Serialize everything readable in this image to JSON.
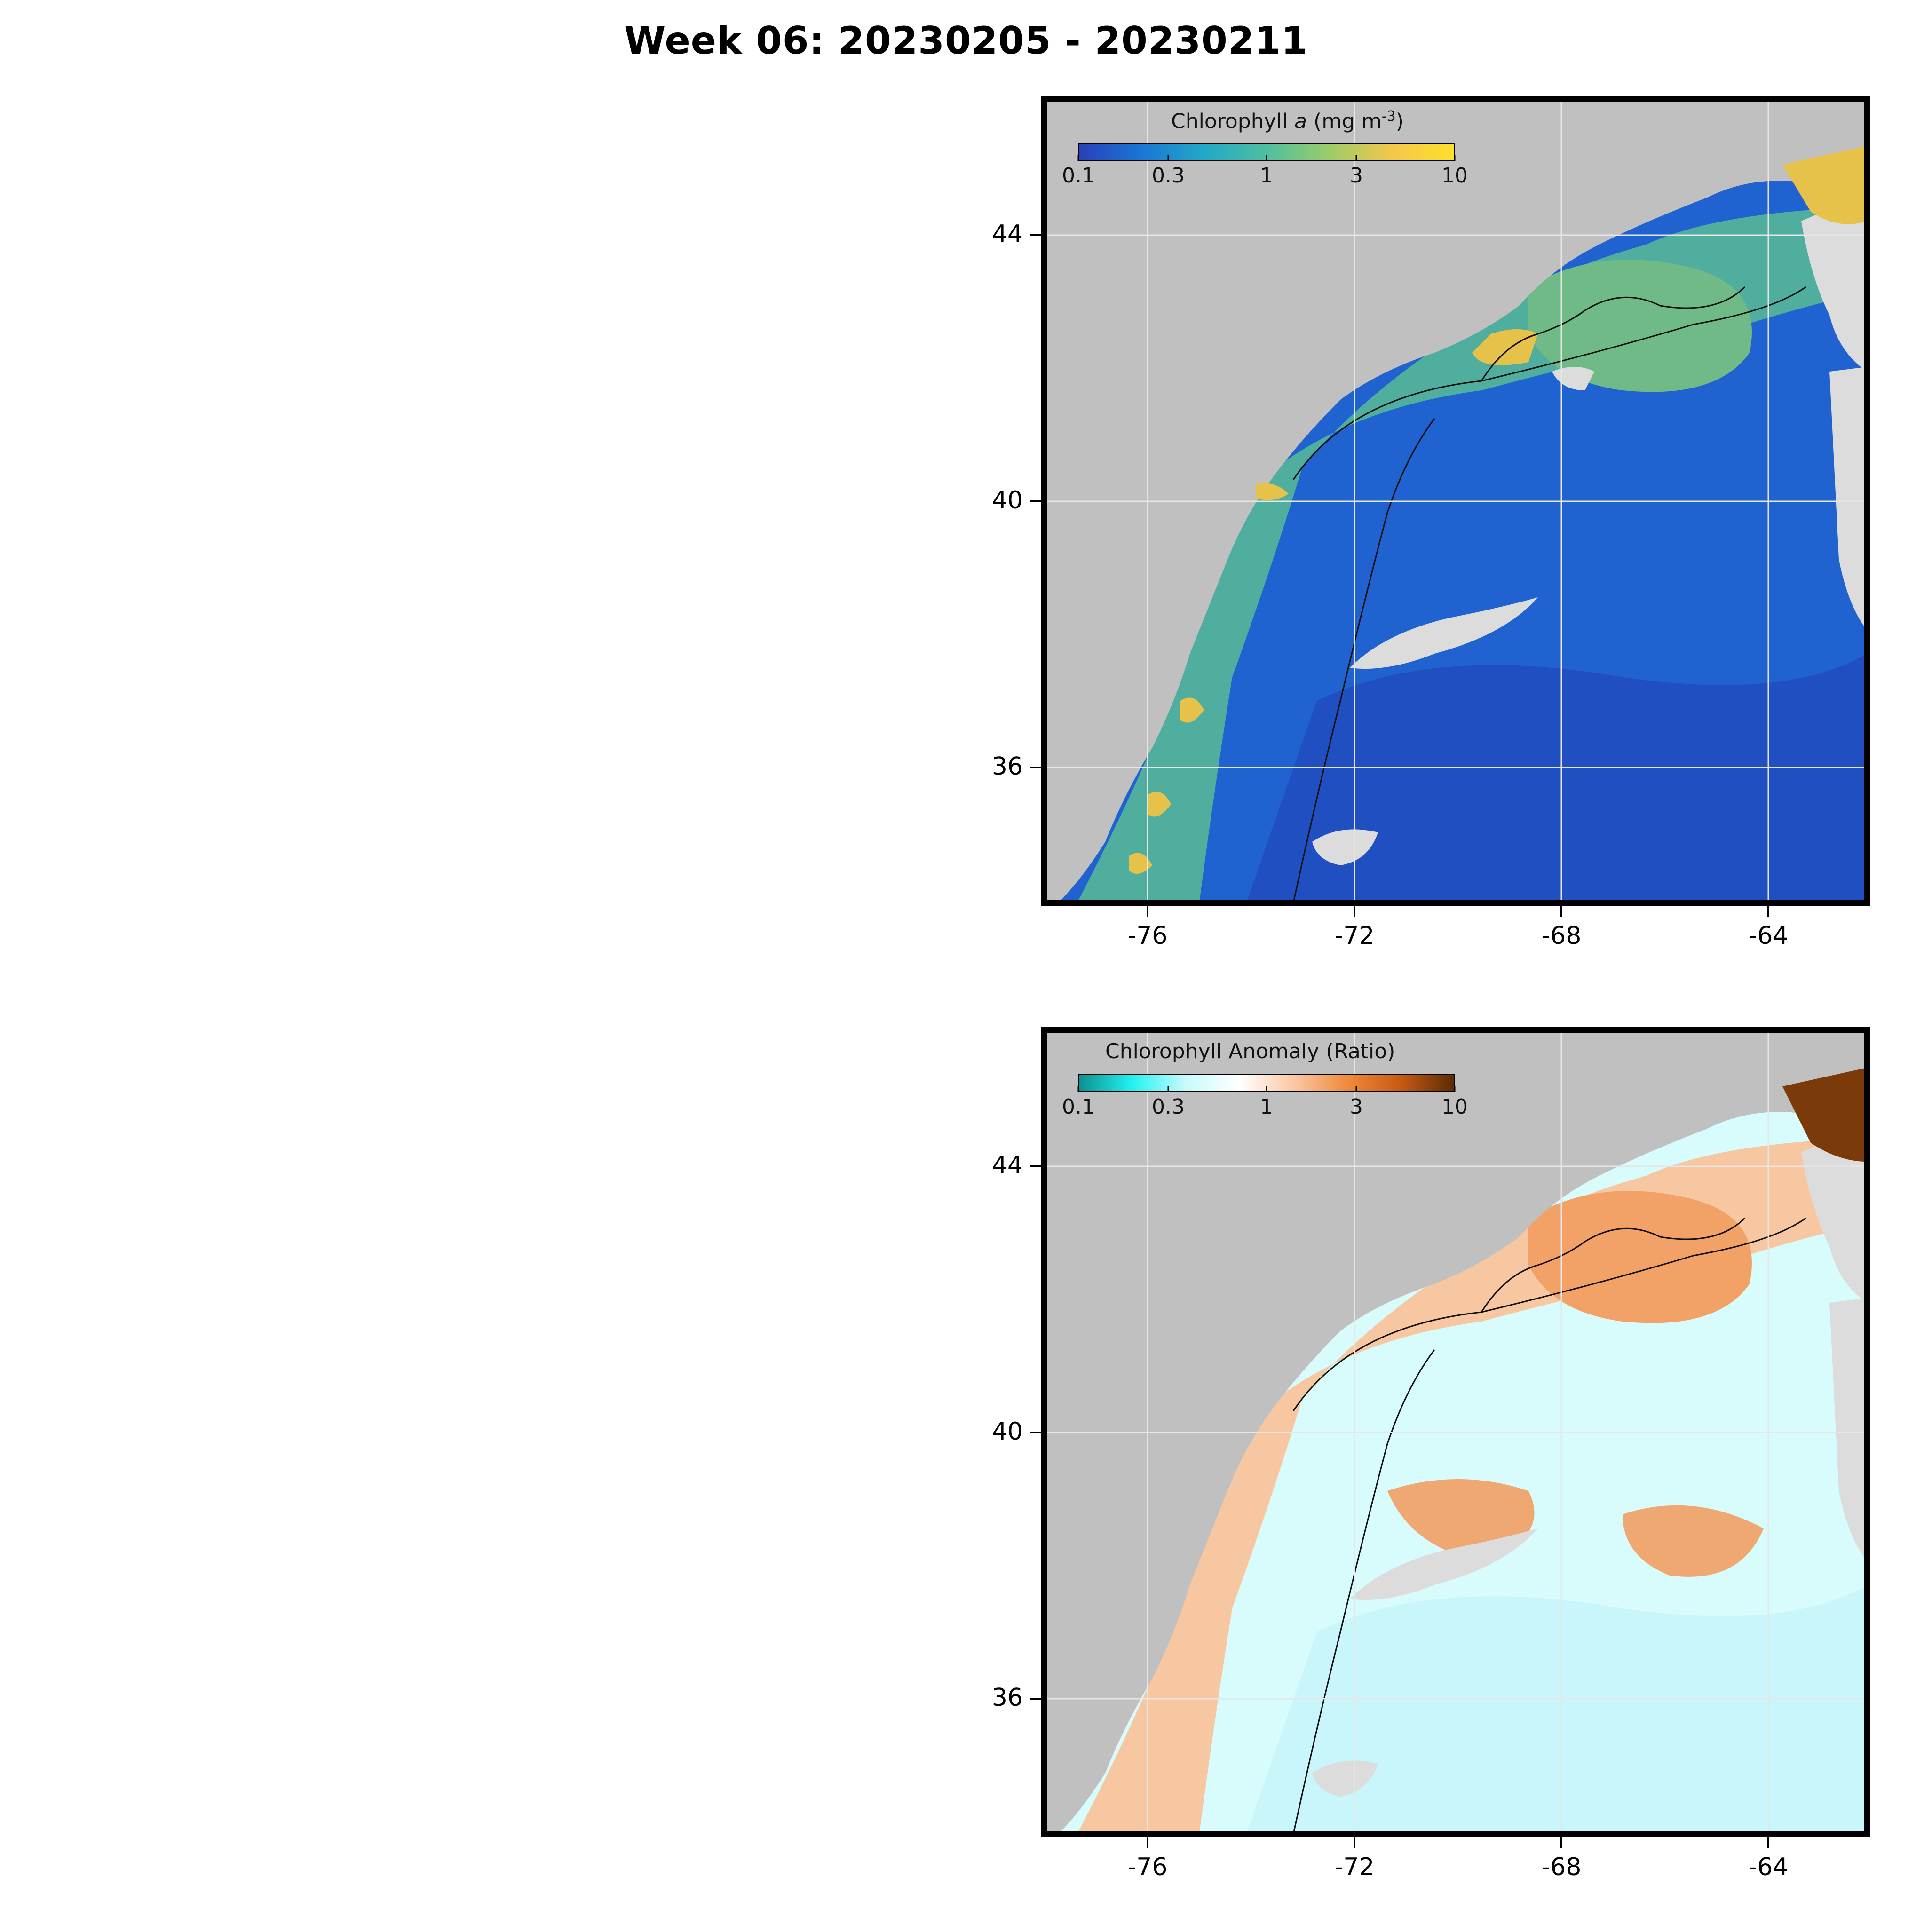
{
  "title": "Week 06: 20230205 - 20230211",
  "colors": {
    "land": "#c0c0c0",
    "nodata": "#dcdcdc",
    "frame": "#000000",
    "grid": "#e6e6e6"
  },
  "panels": [
    {
      "id": "chlorophyll",
      "colorbar": {
        "title_main": "Chlorophyll ",
        "title_var": "a",
        "title_units": " (mg m",
        "title_exp": "-3",
        "title_close": ")",
        "ticks": [
          "0.1",
          "0.3",
          "1",
          "3",
          "10"
        ],
        "gradient": [
          "#2a3fb8",
          "#1a76d6",
          "#22a8c8",
          "#4fbfa0",
          "#9ccc6a",
          "#f2c84b",
          "#ffe02a"
        ]
      },
      "y_ticks": [
        "44",
        "40",
        "36"
      ],
      "x_ticks": [
        "-76",
        "-72",
        "-68",
        "-64"
      ],
      "fills": {
        "offshore": "#2062d0",
        "deep": "#1f4fc0",
        "shelf": "#4fae9e",
        "gulf": "#6fba86",
        "coastal": "#e6c24a"
      }
    },
    {
      "id": "anomaly",
      "colorbar": {
        "title_main": "Chlorophyll Anomaly (Ratio)",
        "ticks": [
          "0.1",
          "0.3",
          "1",
          "3",
          "10"
        ],
        "gradient": [
          "#0c8f8f",
          "#22f2f2",
          "#c8fbfb",
          "#ffffff",
          "#fbc8a4",
          "#f08a3c",
          "#c75a12",
          "#5a2a06"
        ]
      },
      "y_ticks": [
        "44",
        "40",
        "36"
      ],
      "x_ticks": [
        "-76",
        "-72",
        "-68",
        "-64"
      ],
      "fills": {
        "offshore": "#d8fbfb",
        "deep": "#c9f6fb",
        "shelf": "#f7c7a2",
        "gulf": "#f2a266",
        "coastal": "#f0a872"
      }
    }
  ]
}
